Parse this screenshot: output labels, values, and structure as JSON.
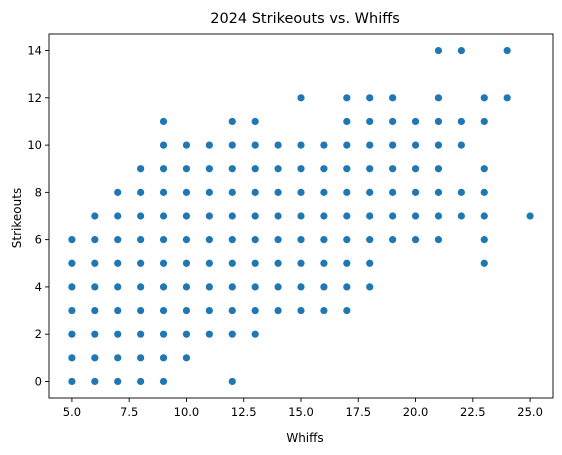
{
  "chart_data": {
    "type": "scatter",
    "title": "2024 Strikeouts vs. Whiffs",
    "xlabel": "Whiffs",
    "ylabel": "Strikeouts",
    "xlim": [
      4.0,
      26.0
    ],
    "ylim": [
      -0.7,
      14.7
    ],
    "x_ticks": [
      5.0,
      7.5,
      10.0,
      12.5,
      15.0,
      17.5,
      20.0,
      22.5,
      25.0
    ],
    "x_tick_labels": [
      "5.0",
      "7.5",
      "10.0",
      "12.5",
      "15.0",
      "17.5",
      "20.0",
      "22.5",
      "25.0"
    ],
    "y_ticks": [
      0,
      2,
      4,
      6,
      8,
      10,
      12,
      14
    ],
    "y_tick_labels": [
      "0",
      "2",
      "4",
      "6",
      "8",
      "10",
      "12",
      "14"
    ],
    "grid": false,
    "marker_color": "#1f77b4",
    "points": [
      [
        5,
        0
      ],
      [
        5,
        1
      ],
      [
        5,
        2
      ],
      [
        5,
        3
      ],
      [
        5,
        4
      ],
      [
        5,
        5
      ],
      [
        5,
        6
      ],
      [
        6,
        0
      ],
      [
        6,
        1
      ],
      [
        6,
        2
      ],
      [
        6,
        3
      ],
      [
        6,
        4
      ],
      [
        6,
        5
      ],
      [
        6,
        6
      ],
      [
        6,
        7
      ],
      [
        7,
        0
      ],
      [
        7,
        1
      ],
      [
        7,
        2
      ],
      [
        7,
        3
      ],
      [
        7,
        4
      ],
      [
        7,
        5
      ],
      [
        7,
        6
      ],
      [
        7,
        7
      ],
      [
        7,
        8
      ],
      [
        8,
        0
      ],
      [
        8,
        1
      ],
      [
        8,
        2
      ],
      [
        8,
        3
      ],
      [
        8,
        4
      ],
      [
        8,
        5
      ],
      [
        8,
        6
      ],
      [
        8,
        7
      ],
      [
        8,
        8
      ],
      [
        8,
        9
      ],
      [
        9,
        0
      ],
      [
        9,
        1
      ],
      [
        9,
        2
      ],
      [
        9,
        3
      ],
      [
        9,
        4
      ],
      [
        9,
        5
      ],
      [
        9,
        6
      ],
      [
        9,
        7
      ],
      [
        9,
        8
      ],
      [
        9,
        9
      ],
      [
        9,
        10
      ],
      [
        9,
        11
      ],
      [
        10,
        1
      ],
      [
        10,
        2
      ],
      [
        10,
        3
      ],
      [
        10,
        4
      ],
      [
        10,
        5
      ],
      [
        10,
        6
      ],
      [
        10,
        7
      ],
      [
        10,
        8
      ],
      [
        10,
        9
      ],
      [
        10,
        10
      ],
      [
        11,
        2
      ],
      [
        11,
        3
      ],
      [
        11,
        4
      ],
      [
        11,
        5
      ],
      [
        11,
        6
      ],
      [
        11,
        7
      ],
      [
        11,
        8
      ],
      [
        11,
        9
      ],
      [
        11,
        10
      ],
      [
        12,
        0
      ],
      [
        12,
        2
      ],
      [
        12,
        3
      ],
      [
        12,
        4
      ],
      [
        12,
        5
      ],
      [
        12,
        6
      ],
      [
        12,
        7
      ],
      [
        12,
        8
      ],
      [
        12,
        9
      ],
      [
        12,
        10
      ],
      [
        12,
        11
      ],
      [
        13,
        2
      ],
      [
        13,
        3
      ],
      [
        13,
        4
      ],
      [
        13,
        5
      ],
      [
        13,
        6
      ],
      [
        13,
        7
      ],
      [
        13,
        8
      ],
      [
        13,
        9
      ],
      [
        13,
        10
      ],
      [
        13,
        11
      ],
      [
        14,
        3
      ],
      [
        14,
        4
      ],
      [
        14,
        5
      ],
      [
        14,
        6
      ],
      [
        14,
        7
      ],
      [
        14,
        8
      ],
      [
        14,
        9
      ],
      [
        14,
        10
      ],
      [
        15,
        3
      ],
      [
        15,
        4
      ],
      [
        15,
        5
      ],
      [
        15,
        6
      ],
      [
        15,
        7
      ],
      [
        15,
        8
      ],
      [
        15,
        9
      ],
      [
        15,
        10
      ],
      [
        15,
        12
      ],
      [
        16,
        3
      ],
      [
        16,
        4
      ],
      [
        16,
        5
      ],
      [
        16,
        6
      ],
      [
        16,
        7
      ],
      [
        16,
        8
      ],
      [
        16,
        9
      ],
      [
        16,
        10
      ],
      [
        17,
        3
      ],
      [
        17,
        4
      ],
      [
        17,
        5
      ],
      [
        17,
        6
      ],
      [
        17,
        7
      ],
      [
        17,
        8
      ],
      [
        17,
        9
      ],
      [
        17,
        10
      ],
      [
        17,
        11
      ],
      [
        17,
        12
      ],
      [
        18,
        4
      ],
      [
        18,
        5
      ],
      [
        18,
        6
      ],
      [
        18,
        7
      ],
      [
        18,
        8
      ],
      [
        18,
        9
      ],
      [
        18,
        10
      ],
      [
        18,
        11
      ],
      [
        18,
        12
      ],
      [
        19,
        6
      ],
      [
        19,
        7
      ],
      [
        19,
        8
      ],
      [
        19,
        9
      ],
      [
        19,
        10
      ],
      [
        19,
        11
      ],
      [
        19,
        12
      ],
      [
        20,
        6
      ],
      [
        20,
        7
      ],
      [
        20,
        8
      ],
      [
        20,
        9
      ],
      [
        20,
        10
      ],
      [
        20,
        11
      ],
      [
        21,
        6
      ],
      [
        21,
        7
      ],
      [
        21,
        8
      ],
      [
        21,
        9
      ],
      [
        21,
        10
      ],
      [
        21,
        11
      ],
      [
        21,
        12
      ],
      [
        21,
        14
      ],
      [
        22,
        7
      ],
      [
        22,
        8
      ],
      [
        22,
        10
      ],
      [
        22,
        11
      ],
      [
        22,
        14
      ],
      [
        23,
        5
      ],
      [
        23,
        6
      ],
      [
        23,
        7
      ],
      [
        23,
        8
      ],
      [
        23,
        9
      ],
      [
        23,
        11
      ],
      [
        23,
        12
      ],
      [
        24,
        12
      ],
      [
        24,
        14
      ],
      [
        25,
        7
      ]
    ]
  }
}
